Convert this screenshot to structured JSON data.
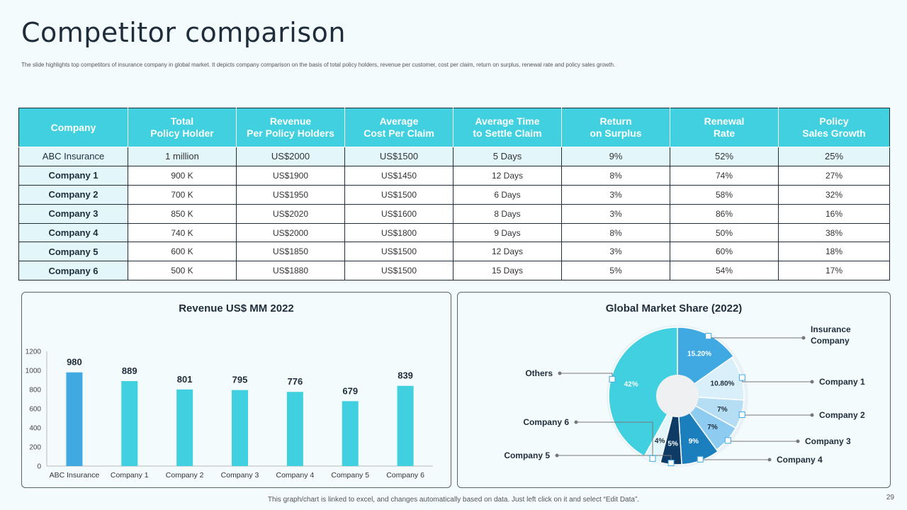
{
  "title": "Competitor comparison",
  "subtitle": "The slide highlights top competitors of insurance company in global market. It depicts company comparison on the basis of total policy holders, revenue per customer, cost per claim, return on surplus, renewal rate and policy sales growth.",
  "table": {
    "headers": [
      "Company",
      "Total\nPolicy Holder",
      "Revenue\nPer Policy Holders",
      "Average\nCost Per Claim",
      "Average Time\nto Settle Claim",
      "Return\non Surplus",
      "Renewal\nRate",
      "Policy\nSales Growth"
    ],
    "rows": [
      [
        "ABC  Insurance",
        "1 million",
        "US$2000",
        "US$1500",
        "5 Days",
        "9%",
        "52%",
        "25%"
      ],
      [
        "Company 1",
        "900 K",
        "US$1900",
        "US$1450",
        "12 Days",
        "8%",
        "74%",
        "27%"
      ],
      [
        "Company 2",
        "700 K",
        "US$1950",
        "US$1500",
        "6 Days",
        "3%",
        "58%",
        "32%"
      ],
      [
        "Company 3",
        "850 K",
        "US$2020",
        "US$1600",
        "8 Days",
        "3%",
        "86%",
        "16%"
      ],
      [
        "Company 4",
        "740 K",
        "US$2000",
        "US$1800",
        "9 Days",
        "8%",
        "50%",
        "38%"
      ],
      [
        "Company 5",
        "600 K",
        "US$1850",
        "US$1500",
        "12 Days",
        "3%",
        "60%",
        "18%"
      ],
      [
        "Company 6",
        "500 K",
        "US$1880",
        "US$1500",
        "15 Days",
        "5%",
        "54%",
        "17%"
      ]
    ]
  },
  "chart_data": [
    {
      "type": "bar",
      "title": "Revenue US$ MM 2022",
      "categories": [
        "ABC Insurance",
        "Company 1",
        "Company 2",
        "Company 3",
        "Company 4",
        "Company 5",
        "Company 6"
      ],
      "values": [
        980,
        889,
        801,
        795,
        776,
        679,
        839
      ],
      "yticks": [
        0,
        200,
        400,
        600,
        800,
        1000,
        1200
      ],
      "ylim": [
        0,
        1200
      ],
      "colors": [
        "#41a9e1",
        "#40d0df",
        "#40d0df",
        "#40d0df",
        "#40d0df",
        "#40d0df",
        "#40d0df"
      ],
      "xlabel": "",
      "ylabel": ""
    },
    {
      "type": "pie",
      "title": "Global Market Share (2022)",
      "slices": [
        {
          "label": "Insurance Company",
          "display": "15.20%",
          "value": 15.2,
          "color": "#41a9e1",
          "text_color": "#ffffff"
        },
        {
          "label": "Company 1",
          "display": "10.80%",
          "value": 10.8,
          "color": "#d9f0fb",
          "text_color": "#1f2d3a"
        },
        {
          "label": "Company 2",
          "display": "7%",
          "value": 7,
          "color": "#b5def5",
          "text_color": "#1f2d3a"
        },
        {
          "label": "Company 3",
          "display": "7%",
          "value": 7,
          "color": "#8ecbf0",
          "text_color": "#1f2d3a"
        },
        {
          "label": "Company 4",
          "display": "9%",
          "value": 9,
          "color": "#1b7fbd",
          "text_color": "#ffffff"
        },
        {
          "label": "Company 5",
          "display": "5%",
          "value": 5,
          "color": "#0d3b66",
          "text_color": "#ffffff"
        },
        {
          "label": "Company 6",
          "display": "4%",
          "value": 4,
          "color": "#e3f7fa",
          "text_color": "#1f2d3a"
        },
        {
          "label": "Others",
          "display": "42%",
          "value": 42,
          "color": "#40d0df",
          "text_color": "#ffffff"
        }
      ]
    }
  ],
  "footer": "This graph/chart is linked to excel, and changes automatically based on data. Just left click on it and select “Edit Data”.",
  "page_number": "29"
}
